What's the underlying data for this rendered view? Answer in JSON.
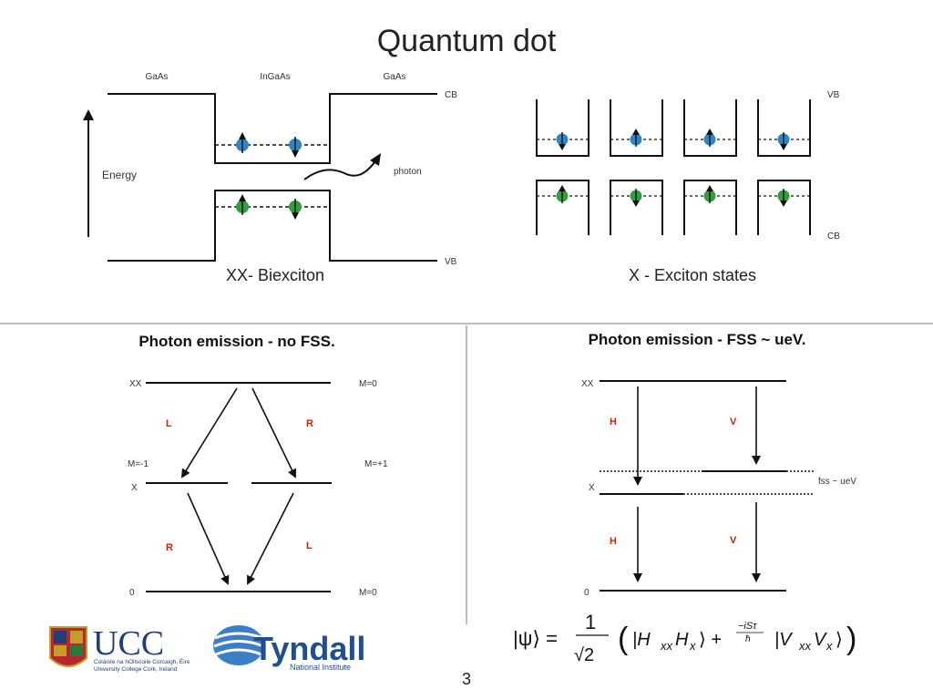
{
  "slide": {
    "title": "Quantum dot",
    "page_number": "3"
  },
  "biexciton_diagram": {
    "left_material": "GaAs",
    "middle_material": "InGaAs",
    "right_material": "GaAs",
    "cb_label": "CB",
    "vb_label": "VB",
    "energy_label": "Energy",
    "photon_label": "photon",
    "caption": "XX- Biexciton"
  },
  "exciton_diagram": {
    "vb_label": "VB",
    "cb_label": "CB",
    "caption": "X - Exciton states"
  },
  "no_fss": {
    "heading": "Photon emission - no FSS.",
    "xx_label": "XX",
    "x_label": "X",
    "zero_label": "0",
    "m0_top": "M=0",
    "m_minus1": "M=-1",
    "m_plus1": "M=+1",
    "m0_bottom": "M=0",
    "upper_left_pol": "L",
    "upper_right_pol": "R",
    "lower_left_pol": "R",
    "lower_right_pol": "L"
  },
  "with_fss": {
    "heading": "Photon emission - FSS ~ ueV.",
    "xx_label": "XX",
    "x_label": "X",
    "zero_label": "0",
    "fss_label": "fss ~ ueV",
    "upper_left_pol": "H",
    "upper_right_pol": "V",
    "lower_left_pol": "H",
    "lower_right_pol": "V"
  },
  "logos": {
    "ucc_name": "UCC",
    "ucc_line1": "Coláiste na hOllscoile Corcaigh, Éire",
    "ucc_line2": "University College Cork, Ireland",
    "tyndall_name": "Tyndall",
    "tyndall_sub": "National Institute"
  },
  "colors": {
    "electron": "#2d86c4",
    "hole": "#2e9e3e",
    "polarization_label": "#cc2200",
    "ucc_blue": "#1e3f7a",
    "tyndall_blue": "#1f4f8f"
  }
}
